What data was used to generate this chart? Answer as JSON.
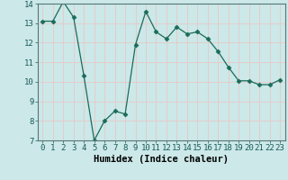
{
  "x": [
    0,
    1,
    2,
    3,
    4,
    5,
    6,
    7,
    8,
    9,
    10,
    11,
    12,
    13,
    14,
    15,
    16,
    17,
    18,
    19,
    20,
    21,
    22,
    23
  ],
  "y": [
    13.1,
    13.1,
    14.1,
    13.3,
    10.3,
    7.0,
    8.0,
    8.5,
    8.35,
    11.9,
    13.6,
    12.55,
    12.2,
    12.8,
    12.45,
    12.55,
    12.2,
    11.55,
    10.75,
    10.05,
    10.05,
    9.85,
    9.85,
    10.1
  ],
  "xlabel": "Humidex (Indice chaleur)",
  "ylim": [
    7,
    14
  ],
  "xlim": [
    -0.5,
    23.5
  ],
  "yticks": [
    7,
    8,
    9,
    10,
    11,
    12,
    13,
    14
  ],
  "xticks": [
    0,
    1,
    2,
    3,
    4,
    5,
    6,
    7,
    8,
    9,
    10,
    11,
    12,
    13,
    14,
    15,
    16,
    17,
    18,
    19,
    20,
    21,
    22,
    23
  ],
  "line_color": "#1a6b5a",
  "marker": "D",
  "marker_size": 2.5,
  "background_color": "#cce8e8",
  "grid_color": "#e8c8c8",
  "xlabel_fontsize": 7.5,
  "tick_fontsize": 6.5
}
